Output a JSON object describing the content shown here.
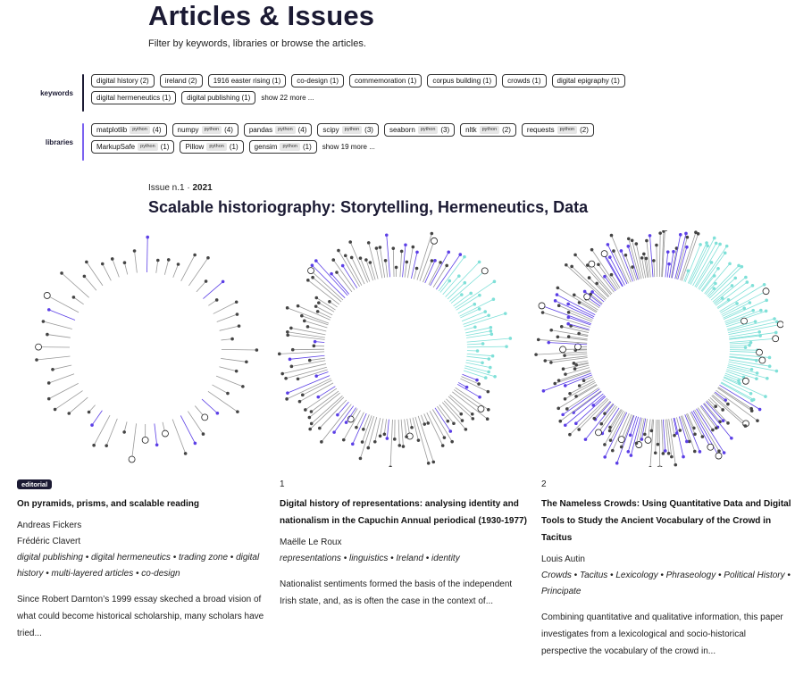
{
  "header": {
    "title": "Articles & Issues",
    "subtitle": "Filter by keywords, libraries or browse the articles."
  },
  "filters": {
    "keywords": {
      "label": "keywords",
      "chips": [
        {
          "text": "digital history (2)"
        },
        {
          "text": "ireland (2)"
        },
        {
          "text": "1916 easter rising (1)"
        },
        {
          "text": "co-design (1)"
        },
        {
          "text": "commemoration (1)"
        },
        {
          "text": "corpus building (1)"
        },
        {
          "text": "crowds (1)"
        },
        {
          "text": "digital epigraphy (1)"
        },
        {
          "text": "digital hermeneutics (1)"
        },
        {
          "text": "digital publishing (1)"
        }
      ],
      "show_more": "show 22 more ..."
    },
    "libraries": {
      "label": "libraries",
      "chips": [
        {
          "name": "matplotlib",
          "tag": "python",
          "count": "(4)"
        },
        {
          "name": "numpy",
          "tag": "python",
          "count": "(4)"
        },
        {
          "name": "pandas",
          "tag": "python",
          "count": "(4)"
        },
        {
          "name": "scipy",
          "tag": "python",
          "count": "(3)"
        },
        {
          "name": "seaborn",
          "tag": "python",
          "count": "(3)"
        },
        {
          "name": "nltk",
          "tag": "python",
          "count": "(2)"
        },
        {
          "name": "requests",
          "tag": "python",
          "count": "(2)"
        },
        {
          "name": "MarkupSafe",
          "tag": "python",
          "count": "(1)"
        },
        {
          "name": "Pillow",
          "tag": "python",
          "count": "(1)"
        },
        {
          "name": "gensim",
          "tag": "python",
          "count": "(1)"
        }
      ],
      "show_more": "show 19 more ..."
    }
  },
  "issue": {
    "label": "Issue n.1 · ",
    "year": "2021",
    "title": "Scalable historiography: Storytelling, Hermeneutics, Data"
  },
  "articles": [
    {
      "badge": "editorial",
      "number": "",
      "title": "On pyramids, prisms, and scalable reading",
      "authors": [
        "Andreas Fickers",
        "Frédéric Clavert"
      ],
      "keywords": "digital publishing • digital hermeneutics • trading zone • digital history • multi-layered articles • co-design",
      "abstract": "Since Robert Darnton’s 1999 essay skeched a broad vision of what could become historical scholarship, many scholars have tried..."
    },
    {
      "badge": "",
      "number": "1",
      "title": "Digital history of representations: analysing identity and nationalism in the Capuchin Annual periodical (1930-1977)",
      "authors": [
        "Maëlle Le Roux"
      ],
      "keywords": "representations • linguistics • Ireland • identity",
      "abstract": "Nationalist sentiments formed the basis of the independent Irish state, and, as is often the case in the context of..."
    },
    {
      "badge": "",
      "number": "2",
      "title": "The Nameless Crowds: Using Quantitative Data and Digital Tools to Study the Ancient Vocabulary of the Crowd in Tacitus",
      "authors": [
        "Louis Autin"
      ],
      "keywords": "Crowds • Tacitus • Lexicology • Phraseology • Political History • Principate",
      "abstract": "Combining quantitative and qualitative information, this paper investigates from a lexicological and socio-historical perspective the vocabulary of the crowd in..."
    }
  ],
  "colors": {
    "accent": "#5b3fe6",
    "text": "#1b1a33",
    "cyan": "#7fe0d8",
    "dot": "#444444"
  }
}
